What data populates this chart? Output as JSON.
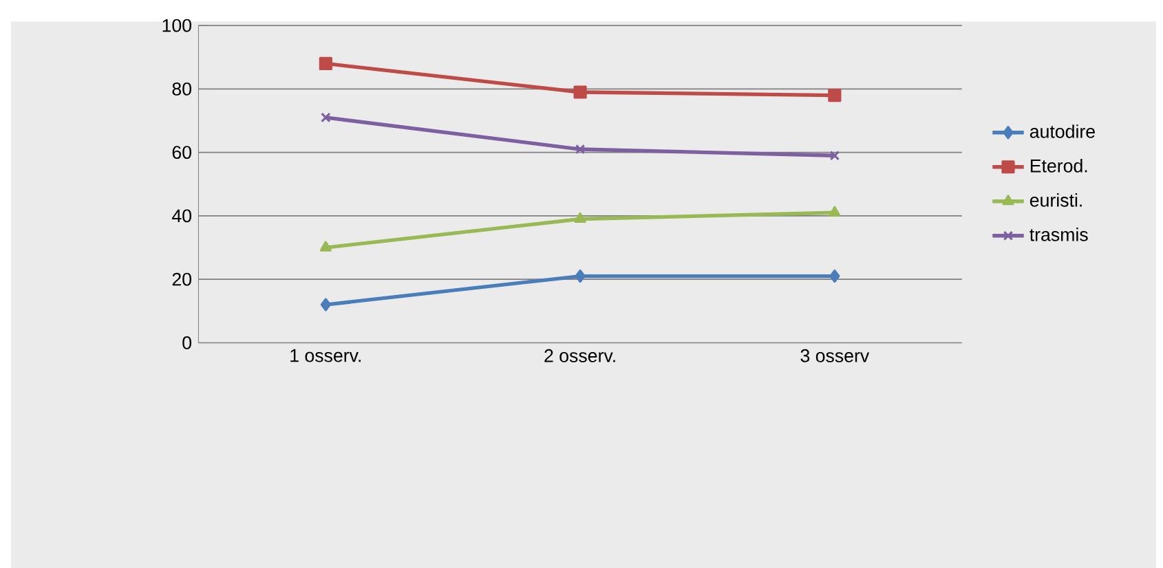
{
  "chart_data": {
    "type": "line",
    "categories": [
      "1 osserv.",
      "2 osserv.",
      "3 osserv"
    ],
    "series": [
      {
        "name": "autodire",
        "color": "#4a7ebb",
        "marker": "diamond",
        "values": [
          12,
          21,
          21
        ]
      },
      {
        "name": "Eterod.",
        "color": "#be4b48",
        "marker": "square",
        "values": [
          88,
          79,
          78
        ]
      },
      {
        "name": "euristi.",
        "color": "#98b954",
        "marker": "triangle",
        "values": [
          30,
          39,
          41
        ]
      },
      {
        "name": "trasmis",
        "color": "#7d60a0",
        "marker": "cross",
        "values": [
          71,
          61,
          59
        ]
      }
    ],
    "ylim": [
      0,
      100
    ],
    "yticks": [
      0,
      20,
      40,
      60,
      80,
      100
    ],
    "grid": "y",
    "legend": "right"
  }
}
